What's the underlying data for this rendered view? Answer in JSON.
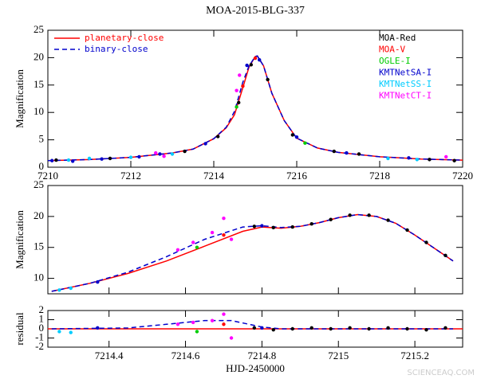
{
  "chart_data": [
    {
      "type": "line",
      "title": "MOA-2015-BLG-337",
      "y_label": "Magnification",
      "xlim": [
        7210,
        7220
      ],
      "ylim": [
        0,
        25
      ],
      "xticks": [
        7210,
        7212,
        7214,
        7216,
        7218,
        7220
      ],
      "yticks": [
        0,
        5,
        10,
        15,
        20,
        25
      ],
      "legend": "upper left",
      "series": [
        {
          "name": "planetary-close",
          "color": "#ff0000",
          "style": "solid",
          "x": [
            7210,
            7211,
            7212,
            7213,
            7213.5,
            7214,
            7214.3,
            7214.5,
            7214.7,
            7214.85,
            7215,
            7215.05,
            7215.2,
            7215.4,
            7215.7,
            7216,
            7216.5,
            7217,
            7218,
            7219,
            7220
          ],
          "values": [
            1.2,
            1.4,
            1.8,
            2.6,
            3.3,
            5.2,
            7.2,
            9.6,
            14.5,
            18.3,
            20.2,
            20.3,
            18.5,
            13.5,
            8.5,
            5.3,
            3.5,
            2.7,
            1.9,
            1.5,
            1.3
          ]
        },
        {
          "name": "binary-close",
          "color": "#0000cc",
          "style": "dashed",
          "x": [
            7210,
            7211,
            7212,
            7213,
            7213.5,
            7214,
            7214.3,
            7214.5,
            7214.7,
            7214.85,
            7215,
            7215.05,
            7215.2,
            7215.4,
            7215.7,
            7216,
            7216.5,
            7217,
            7218,
            7219,
            7220
          ],
          "values": [
            1.2,
            1.4,
            1.8,
            2.6,
            3.3,
            5.2,
            7.3,
            10.2,
            15.5,
            18.5,
            20.2,
            20.3,
            18.5,
            13.5,
            8.5,
            5.3,
            3.5,
            2.7,
            1.9,
            1.5,
            1.3
          ]
        },
        {
          "name": "MOA-Red",
          "color": "#000000",
          "style": "points",
          "x": [
            7210.2,
            7211.5,
            7213.3,
            7214.1,
            7214.6,
            7214.9,
            7215.3,
            7215.9,
            7216.9,
            7217.5,
            7219.2,
            7219.8
          ],
          "values": [
            1.3,
            1.6,
            2.9,
            5.6,
            11.8,
            18.7,
            16.0,
            5.9,
            2.9,
            2.4,
            1.4,
            1.2
          ]
        },
        {
          "name": "MOA-V",
          "color": "#ff0000",
          "style": "points",
          "x": [
            7214.7,
            7215.0
          ],
          "values": [
            14.8,
            19.9
          ]
        },
        {
          "name": "OGLE-I",
          "color": "#00cc00",
          "style": "points",
          "x": [
            7214.55,
            7216.2
          ],
          "values": [
            11.0,
            4.4
          ]
        },
        {
          "name": "KMTNetSA-I",
          "color": "#0000cc",
          "style": "points",
          "x": [
            7210.1,
            7210.6,
            7211.3,
            7212.2,
            7212.7,
            7213.8,
            7214.8,
            7215.1,
            7216.0,
            7217.2,
            7218.7
          ],
          "values": [
            1.2,
            1.1,
            1.5,
            1.9,
            2.4,
            4.3,
            18.6,
            19.6,
            5.5,
            2.6,
            1.7
          ]
        },
        {
          "name": "KMTNetSS-I",
          "color": "#00ccff",
          "style": "points",
          "x": [
            7210.5,
            7211.0,
            7212.0,
            7213.0,
            7218.2,
            7218.9
          ],
          "values": [
            1.3,
            1.6,
            1.8,
            2.4,
            1.6,
            1.4
          ]
        },
        {
          "name": "KMTNetCT-I",
          "color": "#ff00ff",
          "style": "points",
          "x": [
            7212.6,
            7212.8,
            7214.55,
            7214.62,
            7219.6
          ],
          "values": [
            2.6,
            2.0,
            14.0,
            16.8,
            1.9
          ]
        }
      ]
    },
    {
      "type": "line",
      "y_label": "Magnification",
      "xlim": [
        7214.24,
        7215.325
      ],
      "ylim": [
        7.5,
        25
      ],
      "yticks": [
        10,
        15,
        20,
        25
      ],
      "series": [
        {
          "color": "#ff0000",
          "style": "solid",
          "x": [
            7214.25,
            7214.35,
            7214.45,
            7214.55,
            7214.65,
            7214.75,
            7214.8,
            7214.85,
            7214.9,
            7214.95,
            7215,
            7215.05,
            7215.1,
            7215.15,
            7215.2,
            7215.25,
            7215.3
          ],
          "values": [
            7.9,
            9.2,
            10.8,
            12.8,
            15.2,
            17.6,
            18.3,
            18.1,
            18.4,
            19.0,
            19.8,
            20.3,
            20.0,
            18.9,
            17.0,
            14.9,
            12.8
          ]
        },
        {
          "color": "#0000cc",
          "style": "dashed",
          "x": [
            7214.25,
            7214.35,
            7214.45,
            7214.55,
            7214.65,
            7214.75,
            7214.8,
            7214.85,
            7214.9,
            7214.95,
            7215,
            7215.05,
            7215.1,
            7215.15,
            7215.2,
            7215.25,
            7215.3
          ],
          "values": [
            7.9,
            9.2,
            11.0,
            13.5,
            16.3,
            18.3,
            18.5,
            18.2,
            18.4,
            19.0,
            19.8,
            20.3,
            20.0,
            18.9,
            17.0,
            14.9,
            12.8
          ]
        },
        {
          "color": "#000000",
          "style": "points",
          "x": [
            7214.78,
            7214.83,
            7214.88,
            7214.93,
            7214.98,
            7215.03,
            7215.08,
            7215.13,
            7215.18,
            7215.23,
            7215.28
          ],
          "values": [
            18.4,
            18.2,
            18.3,
            18.8,
            19.5,
            20.2,
            20.2,
            19.4,
            17.8,
            15.8,
            13.7
          ]
        },
        {
          "color": "#ff0000",
          "style": "points",
          "x": [
            7214.7
          ],
          "values": [
            17.0
          ]
        },
        {
          "color": "#00cc00",
          "style": "points",
          "x": [
            7214.63
          ],
          "values": [
            15.0
          ]
        },
        {
          "color": "#0000cc",
          "style": "points",
          "x": [
            7214.37,
            7214.8
          ],
          "values": [
            9.4,
            18.5
          ]
        },
        {
          "color": "#00ccff",
          "style": "points",
          "x": [
            7214.27,
            7214.3
          ],
          "values": [
            8.1,
            8.4
          ]
        },
        {
          "color": "#ff00ff",
          "style": "points",
          "x": [
            7214.58,
            7214.62,
            7214.67,
            7214.7,
            7214.72
          ],
          "values": [
            14.6,
            15.8,
            17.4,
            19.7,
            16.3
          ]
        }
      ]
    },
    {
      "type": "line",
      "y_label": "residual",
      "x_label": "HJD-2450000",
      "xlim": [
        7214.24,
        7215.325
      ],
      "ylim": [
        -2,
        2
      ],
      "xticks": [
        7214.4,
        7214.6,
        7214.8,
        7215,
        7215.2
      ],
      "yticks": [
        -2,
        -1,
        0,
        1,
        2
      ],
      "series": [
        {
          "color": "#ff0000",
          "style": "solid",
          "x": [
            7214.24,
            7215.325
          ],
          "values": [
            0,
            0
          ]
        },
        {
          "color": "#0000cc",
          "style": "dashed",
          "x": [
            7214.25,
            7214.45,
            7214.55,
            7214.65,
            7214.72,
            7214.8,
            7214.85,
            7215.3
          ],
          "values": [
            0,
            0.1,
            0.5,
            0.9,
            0.9,
            0.2,
            0,
            0
          ]
        },
        {
          "color": "#000000",
          "style": "points",
          "x": [
            7214.78,
            7214.83,
            7214.88,
            7214.93,
            7214.98,
            7215.03,
            7215.08,
            7215.13,
            7215.18,
            7215.23,
            7215.28
          ],
          "values": [
            0.1,
            -0.1,
            0,
            0.1,
            0,
            0.1,
            0,
            0.1,
            0,
            -0.1,
            0.1
          ]
        },
        {
          "color": "#ff0000",
          "style": "points",
          "x": [
            7214.7
          ],
          "values": [
            0.5
          ]
        },
        {
          "color": "#00cc00",
          "style": "points",
          "x": [
            7214.63
          ],
          "values": [
            -0.3
          ]
        },
        {
          "color": "#0000cc",
          "style": "points",
          "x": [
            7214.37,
            7214.8
          ],
          "values": [
            0.1,
            0.1
          ]
        },
        {
          "color": "#00ccff",
          "style": "points",
          "x": [
            7214.27,
            7214.3
          ],
          "values": [
            -0.3,
            -0.4
          ]
        },
        {
          "color": "#ff00ff",
          "style": "points",
          "x": [
            7214.58,
            7214.62,
            7214.67,
            7214.7,
            7214.72
          ],
          "values": [
            0.5,
            0.7,
            0.9,
            1.6,
            -1.0
          ]
        }
      ]
    }
  ],
  "watermark": "SCIENCEAQ.COM"
}
